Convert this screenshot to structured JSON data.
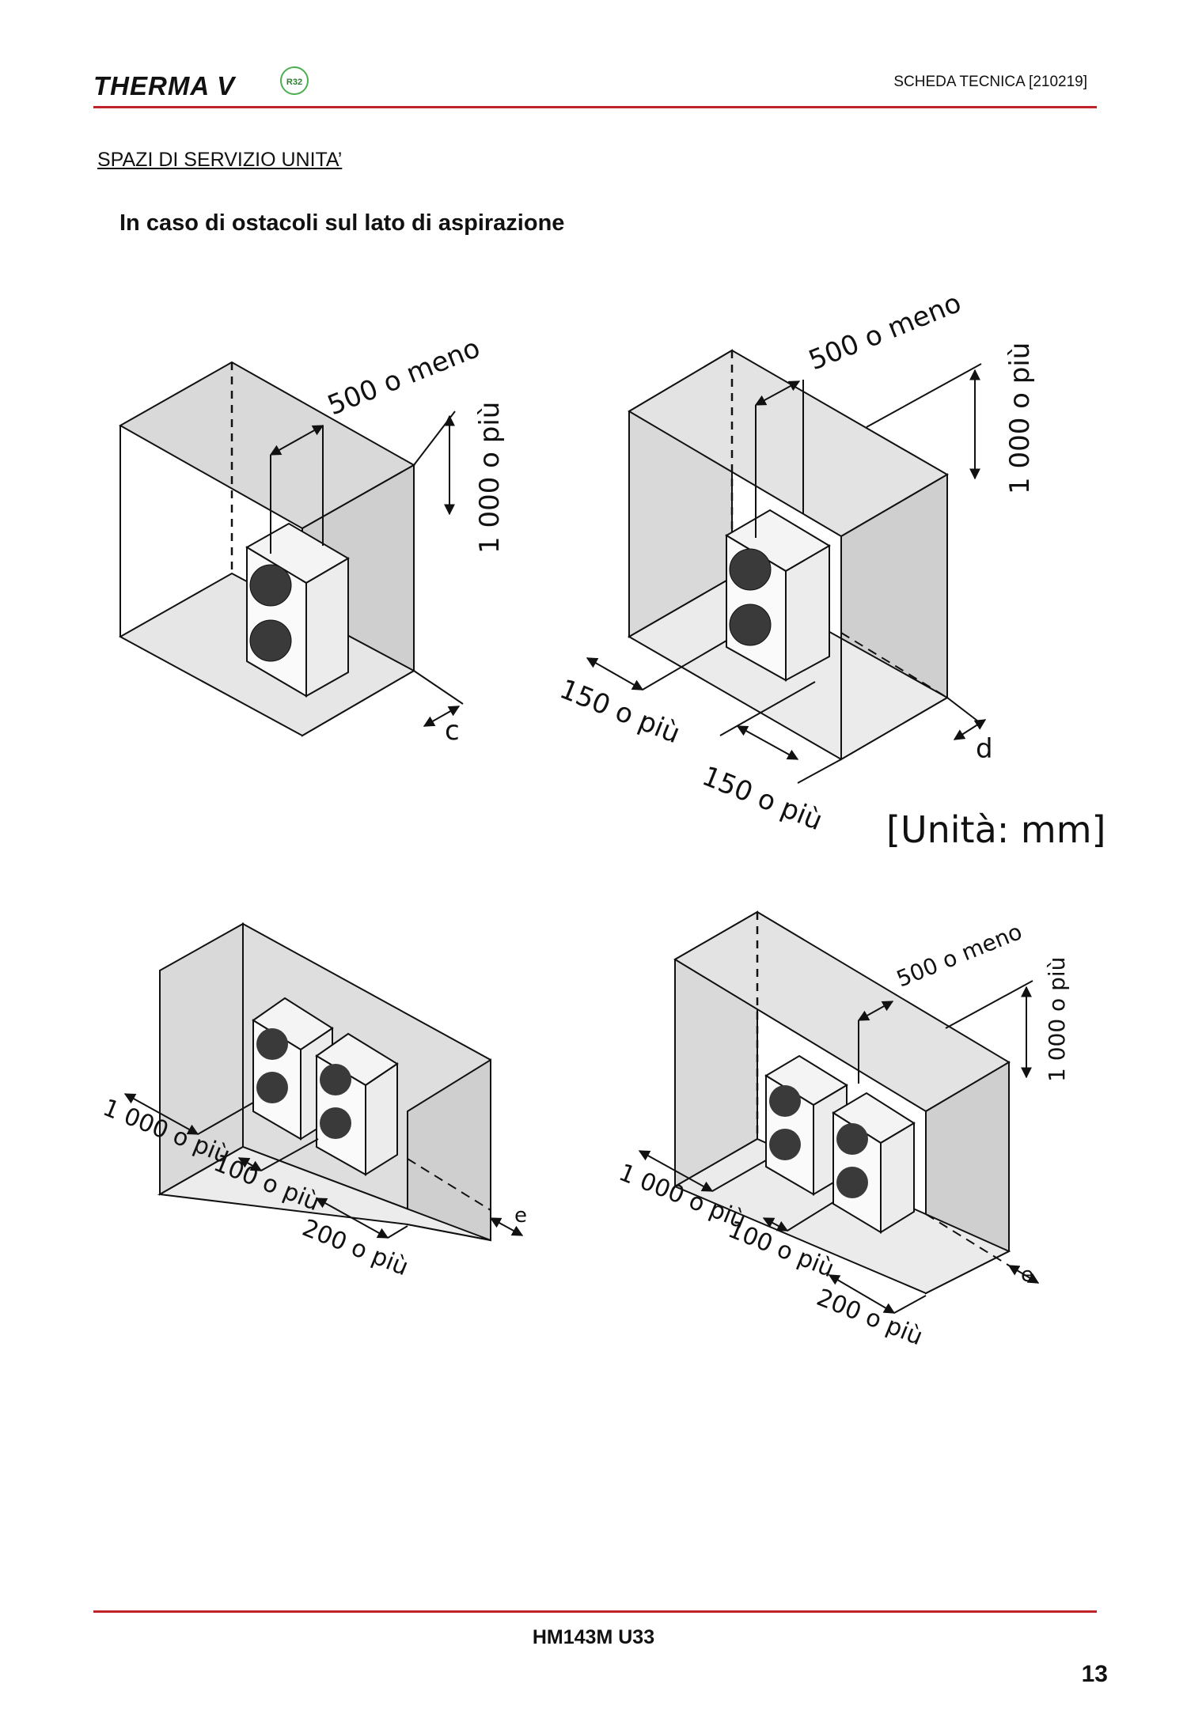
{
  "header": {
    "brand": "THERMA V",
    "badge": "R32",
    "doc_code": "SCHEDA TECNICA [210219]"
  },
  "section_title": "SPAZI DI SERVIZIO UNITA’",
  "subtitle": "In caso di ostacoli sul lato di aspirazione",
  "unit_label": "[Unità: mm]",
  "figures": {
    "top_left": {
      "gap": "500 o meno",
      "height": "1 000 o più",
      "side": "c"
    },
    "top_right": {
      "gap": "500 o meno",
      "height": "1 000 o più",
      "left": "150 o più",
      "front": "150 o più",
      "side": "d"
    },
    "bottom_left": {
      "left": "1 000 o più",
      "between": "100 o più",
      "front": "200 o più",
      "side": "e"
    },
    "bottom_right": {
      "gap": "500 o meno",
      "height": "1 000 o più",
      "left": "1 000 o più",
      "between": "100 o più",
      "front": "200 o più",
      "side": "e"
    }
  },
  "footer": {
    "model": "HM143M U33",
    "page": "13"
  }
}
